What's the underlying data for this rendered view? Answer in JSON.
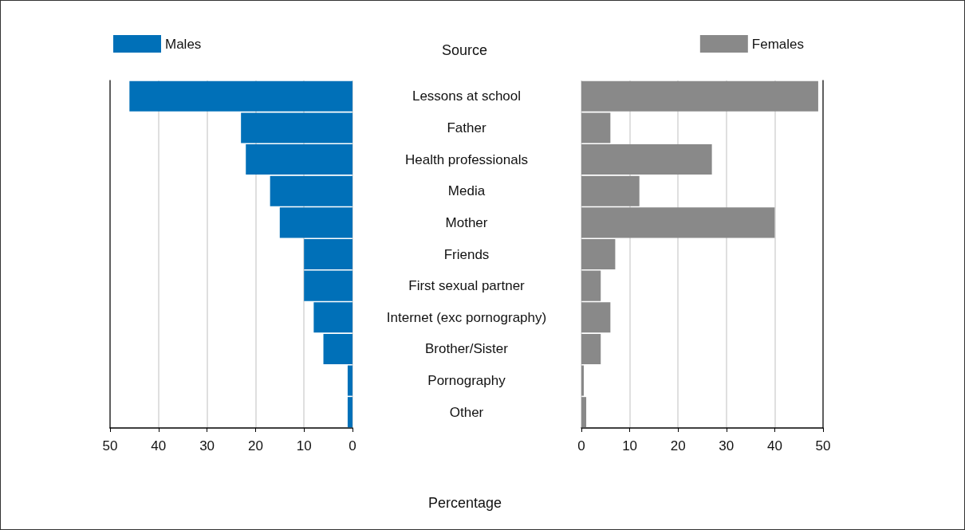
{
  "chart_data": [
    {
      "type": "bar",
      "orientation": "horizontal",
      "categories": [
        null,
        null,
        null,
        null,
        null,
        null,
        null,
        null,
        null,
        null,
        null
      ],
      "series": [
        {
          "name": "Males",
          "color": "#0070b8",
          "values": [
            46,
            23,
            22,
            17,
            15,
            10,
            10,
            8,
            6,
            1,
            1
          ]
        }
      ],
      "xlim": [
        50,
        0
      ],
      "xticks": [
        50,
        40,
        30,
        20,
        10,
        0
      ],
      "grid": "x",
      "legend": "top left",
      "tick_labels": "x"
    },
    {
      "type": "bar",
      "orientation": "horizontal",
      "ylabel": "Source",
      "xlabel": "Percentage",
      "categories": [
        "Lessons at school",
        "Father",
        "Health professionals",
        "Media",
        "Mother",
        "Friends",
        "First sexual partner",
        "Internet (exc pornography)",
        "Brother/Sister",
        "Pornography",
        "Other"
      ],
      "series": [
        {
          "name": "Females",
          "color": "#898989",
          "values": [
            49,
            6,
            27,
            12,
            40,
            7,
            4,
            6,
            4,
            0.5,
            1
          ]
        }
      ],
      "xlim": [
        0,
        50
      ],
      "xticks": [
        0,
        10,
        20,
        30,
        40,
        50
      ],
      "grid": "x",
      "legend": "top right"
    }
  ]
}
